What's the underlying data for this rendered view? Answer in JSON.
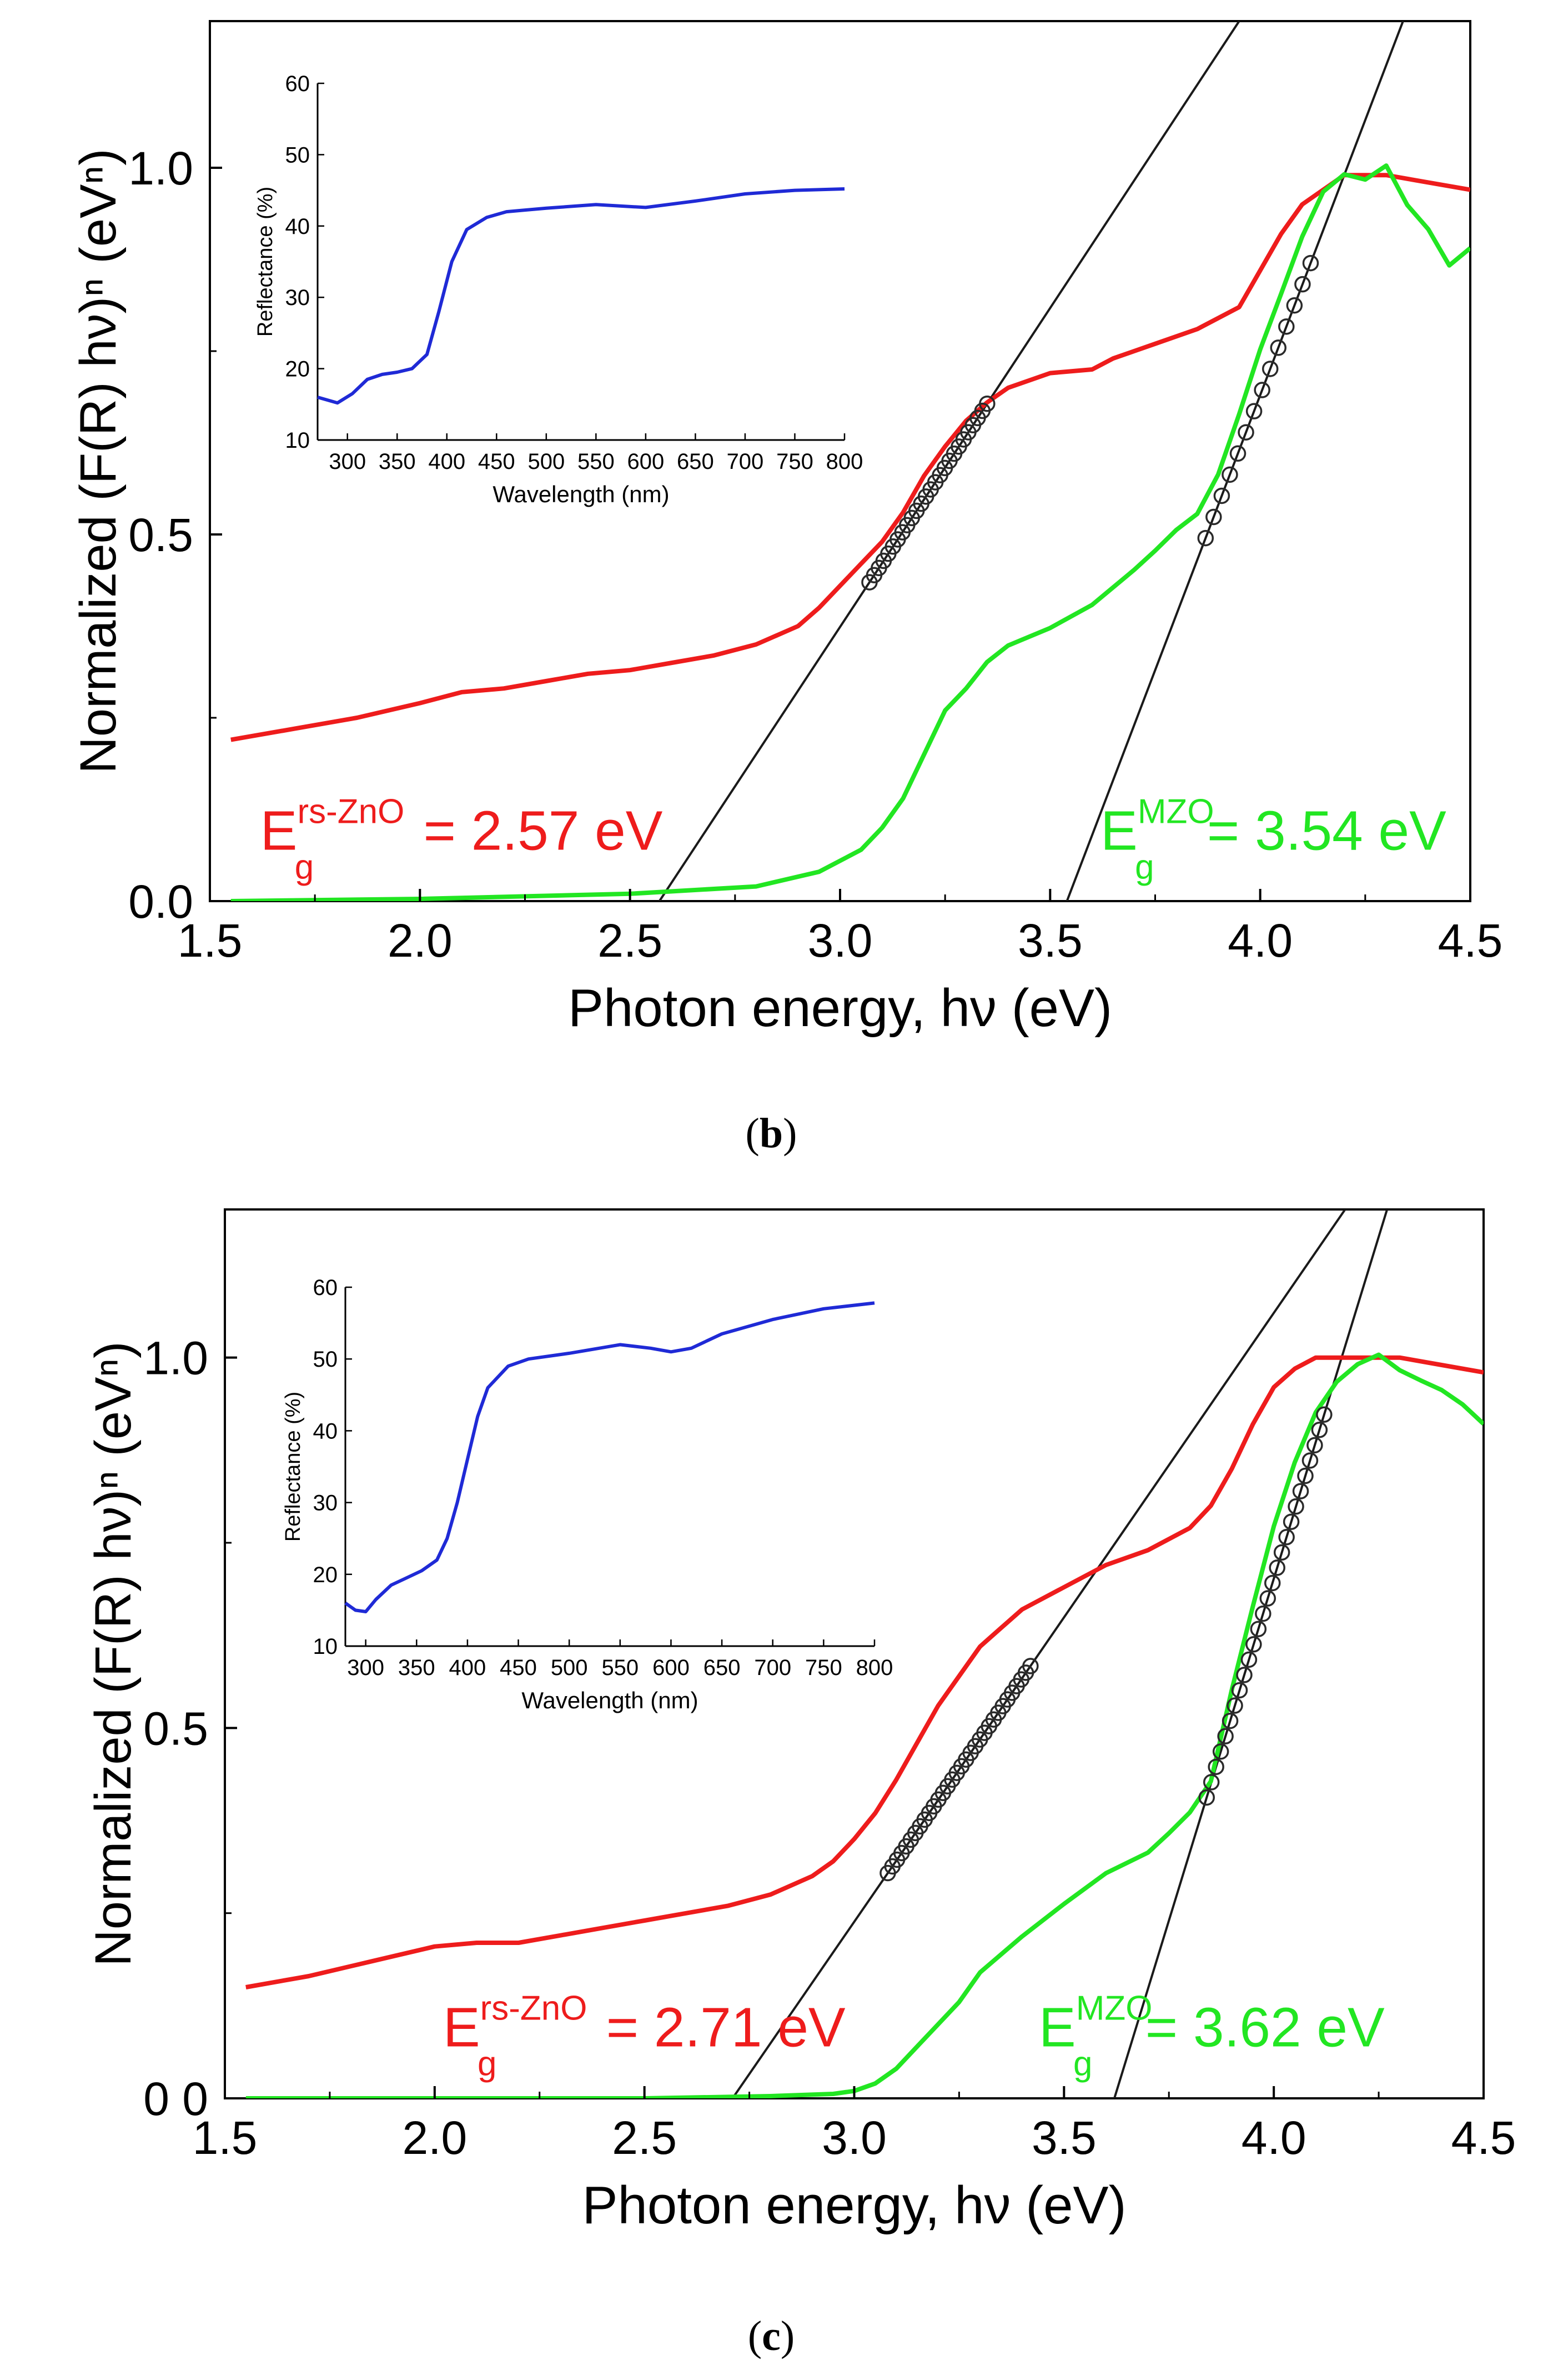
{
  "colors": {
    "red": "#ee1c1c",
    "green": "#22e622",
    "blue": "#1f2ad6",
    "fit": "#1a1a1a",
    "marker": "#2a2a2a"
  },
  "chart_data": [
    {
      "id": "b",
      "type": "line",
      "caption_letter": "b",
      "xlabel": "Photon energy, hν (eV)",
      "ylabel": "Normalized (F(R) hν)ⁿ (eVⁿ)",
      "xlim": [
        1.5,
        4.5
      ],
      "ylim": [
        0.0,
        1.2
      ],
      "xticks": [
        1.5,
        2.0,
        2.5,
        3.0,
        3.5,
        4.0,
        4.5
      ],
      "xtick_labels": [
        "1.5",
        "2.0",
        "2.5",
        "3.0",
        "3.5",
        "4.0",
        "4.5"
      ],
      "yticks": [
        0.0,
        0.5,
        1.0
      ],
      "ytick_labels": [
        "0.0",
        "0.5",
        "1.0"
      ],
      "series": [
        {
          "color": "red",
          "x": [
            1.55,
            1.7,
            1.85,
            2.0,
            2.1,
            2.2,
            2.3,
            2.4,
            2.5,
            2.6,
            2.7,
            2.8,
            2.9,
            2.95,
            3.0,
            3.05,
            3.1,
            3.15,
            3.2,
            3.25,
            3.3,
            3.35,
            3.4,
            3.5,
            3.6,
            3.65,
            3.75,
            3.85,
            3.95,
            4.0,
            4.05,
            4.1,
            4.2,
            4.3,
            4.4,
            4.5
          ],
          "y": [
            0.22,
            0.235,
            0.25,
            0.27,
            0.285,
            0.29,
            0.3,
            0.31,
            0.315,
            0.325,
            0.335,
            0.35,
            0.375,
            0.4,
            0.43,
            0.46,
            0.49,
            0.53,
            0.58,
            0.62,
            0.655,
            0.68,
            0.7,
            0.72,
            0.725,
            0.74,
            0.76,
            0.78,
            0.81,
            0.86,
            0.91,
            0.95,
            0.99,
            0.99,
            0.98,
            0.97
          ]
        },
        {
          "color": "green",
          "x": [
            1.55,
            2.0,
            2.5,
            2.8,
            2.95,
            3.05,
            3.1,
            3.15,
            3.2,
            3.25,
            3.3,
            3.35,
            3.4,
            3.5,
            3.6,
            3.7,
            3.75,
            3.8,
            3.85,
            3.9,
            3.95,
            4.0,
            4.05,
            4.1,
            4.15,
            4.2,
            4.25,
            4.3,
            4.35,
            4.4,
            4.45,
            4.5
          ],
          "y": [
            0.0,
            0.003,
            0.01,
            0.02,
            0.04,
            0.07,
            0.1,
            0.14,
            0.2,
            0.26,
            0.29,
            0.33,
            0.35,
            0.37,
            0.4,
            0.45,
            0.48,
            0.51,
            0.53,
            0.58,
            0.66,
            0.75,
            0.83,
            0.91,
            0.97,
            0.99,
            0.98,
            1.0,
            0.95,
            0.92,
            0.87,
            0.89
          ]
        }
      ],
      "fit_lines": [
        {
          "color": "fit",
          "x": [
            2.57,
            3.95
          ],
          "y": [
            0.0,
            1.2
          ]
        },
        {
          "color": "fit",
          "x": [
            3.54,
            4.34
          ],
          "y": [
            0.0,
            1.2
          ]
        }
      ],
      "fit_markers": [
        {
          "x_from": 3.07,
          "x_to": 3.35,
          "count": 26,
          "line": 0
        },
        {
          "x_from": 3.87,
          "x_to": 4.12,
          "count": 14,
          "line": 1
        }
      ],
      "annotations": [
        {
          "base": "E",
          "sub": "g",
          "sup": "rs-ZnO",
          "tail": " = 2.57 eV",
          "color": "red",
          "x": 1.62,
          "y": 0.07
        },
        {
          "base": "E",
          "sub": "g",
          "sup": "MZO",
          "tail": " = 3.54 eV",
          "color": "green",
          "x": 3.62,
          "y": 0.07
        }
      ],
      "inset": {
        "xlabel": "Wavelength (nm)",
        "ylabel": "Reflectance (%)",
        "xlim": [
          270,
          800
        ],
        "ylim": [
          10,
          60
        ],
        "xticks": [
          300,
          350,
          400,
          450,
          500,
          550,
          600,
          650,
          700,
          750,
          800
        ],
        "xtick_labels": [
          "300",
          "350",
          "400",
          "450",
          "500",
          "550",
          "600",
          "650",
          "700",
          "750",
          "800"
        ],
        "yticks": [
          10,
          20,
          30,
          40,
          50,
          60
        ],
        "ytick_labels": [
          "10",
          "20",
          "30",
          "40",
          "50",
          "60"
        ],
        "series": [
          {
            "color": "blue",
            "x": [
              270,
              290,
              305,
              320,
              335,
              350,
              365,
              380,
              392,
              405,
              420,
              440,
              460,
              500,
              550,
              600,
              650,
              700,
              750,
              800
            ],
            "y": [
              16,
              15.2,
              16.5,
              18.5,
              19.2,
              19.5,
              20,
              22,
              28,
              35,
              39.5,
              41.2,
              42,
              42.5,
              43,
              42.6,
              43.5,
              44.5,
              45,
              45.2
            ]
          }
        ]
      }
    },
    {
      "id": "c",
      "type": "line",
      "caption_letter": "c",
      "xlabel": "Photon energy, hν (eV)",
      "ylabel": "Normalized (F(R) hν)ⁿ (eVⁿ)",
      "xlim": [
        1.5,
        4.5
      ],
      "ylim": [
        0.0,
        1.2
      ],
      "xticks": [
        1.5,
        2.0,
        2.5,
        3.0,
        3.5,
        4.0,
        4.5
      ],
      "xtick_labels": [
        "1.5",
        "2.0",
        "2.5",
        "3.0",
        "3.5",
        "4.0",
        "4.5"
      ],
      "yticks": [
        0.0,
        0.5,
        1.0
      ],
      "ytick_labels": [
        "0 0",
        "0.5",
        "1.0"
      ],
      "series": [
        {
          "color": "red",
          "x": [
            1.55,
            1.7,
            1.85,
            2.0,
            2.1,
            2.2,
            2.3,
            2.4,
            2.5,
            2.6,
            2.7,
            2.8,
            2.9,
            2.95,
            3.0,
            3.05,
            3.1,
            3.15,
            3.2,
            3.25,
            3.3,
            3.35,
            3.4,
            3.5,
            3.6,
            3.7,
            3.8,
            3.85,
            3.9,
            3.95,
            4.0,
            4.05,
            4.1,
            4.2,
            4.3,
            4.4,
            4.5
          ],
          "y": [
            0.15,
            0.165,
            0.185,
            0.205,
            0.21,
            0.21,
            0.22,
            0.23,
            0.24,
            0.25,
            0.26,
            0.275,
            0.3,
            0.32,
            0.35,
            0.385,
            0.43,
            0.48,
            0.53,
            0.57,
            0.61,
            0.635,
            0.66,
            0.69,
            0.72,
            0.74,
            0.77,
            0.8,
            0.85,
            0.91,
            0.96,
            0.985,
            1.0,
            1.0,
            1.0,
            0.99,
            0.98
          ]
        },
        {
          "color": "green",
          "x": [
            1.55,
            2.0,
            2.5,
            2.8,
            2.95,
            3.0,
            3.05,
            3.1,
            3.15,
            3.2,
            3.25,
            3.3,
            3.4,
            3.5,
            3.6,
            3.7,
            3.75,
            3.8,
            3.85,
            3.9,
            3.95,
            4.0,
            4.05,
            4.1,
            4.15,
            4.2,
            4.25,
            4.3,
            4.35,
            4.4,
            4.45,
            4.5
          ],
          "y": [
            0.0,
            0.0,
            0.0,
            0.003,
            0.006,
            0.01,
            0.02,
            0.04,
            0.07,
            0.1,
            0.13,
            0.17,
            0.22,
            0.26,
            0.3,
            0.33,
            0.36,
            0.39,
            0.43,
            0.55,
            0.66,
            0.77,
            0.86,
            0.93,
            0.97,
            0.99,
            1.0,
            0.98,
            0.97,
            0.96,
            0.94,
            0.91
          ]
        }
      ],
      "fit_lines": [
        {
          "color": "fit",
          "x": [
            2.71,
            4.17
          ],
          "y": [
            0.0,
            1.2
          ]
        },
        {
          "color": "fit",
          "x": [
            3.62,
            4.27
          ],
          "y": [
            0.0,
            1.2
          ]
        }
      ],
      "fit_markers": [
        {
          "x_from": 3.08,
          "x_to": 3.42,
          "count": 32,
          "line": 0
        },
        {
          "x_from": 3.84,
          "x_to": 4.12,
          "count": 26,
          "line": 1
        }
      ],
      "annotations": [
        {
          "base": "E",
          "sub": "g",
          "sup": "rs-ZnO",
          "tail": " = 2.71 eV",
          "color": "red",
          "x": 2.02,
          "y": 0.07
        },
        {
          "base": "E",
          "sub": "g",
          "sup": "MZO",
          "tail": " = 3.62 eV",
          "color": "green",
          "x": 3.44,
          "y": 0.07
        }
      ],
      "inset": {
        "xlabel": "Wavelength (nm)",
        "ylabel": "Reflectance (%)",
        "xlim": [
          280,
          800
        ],
        "ylim": [
          10,
          60
        ],
        "xticks": [
          300,
          350,
          400,
          450,
          500,
          550,
          600,
          650,
          700,
          750,
          800
        ],
        "xtick_labels": [
          "300",
          "350",
          "400",
          "450",
          "500",
          "550",
          "600",
          "650",
          "700",
          "750",
          "800"
        ],
        "yticks": [
          10,
          20,
          30,
          40,
          50,
          60
        ],
        "ytick_labels": [
          "10",
          "20",
          "30",
          "40",
          "50",
          "60"
        ],
        "series": [
          {
            "color": "blue",
            "x": [
              280,
              290,
              300,
              310,
              325,
              340,
              355,
              370,
              380,
              390,
              400,
              410,
              420,
              440,
              460,
              500,
              550,
              580,
              600,
              620,
              650,
              700,
              750,
              800
            ],
            "y": [
              16,
              15,
              14.8,
              16.5,
              18.5,
              19.5,
              20.5,
              22,
              25,
              30,
              36,
              42,
              46,
              49,
              50,
              50.8,
              52,
              51.5,
              51,
              51.5,
              53.5,
              55.5,
              57,
              57.8
            ]
          }
        ]
      }
    }
  ]
}
